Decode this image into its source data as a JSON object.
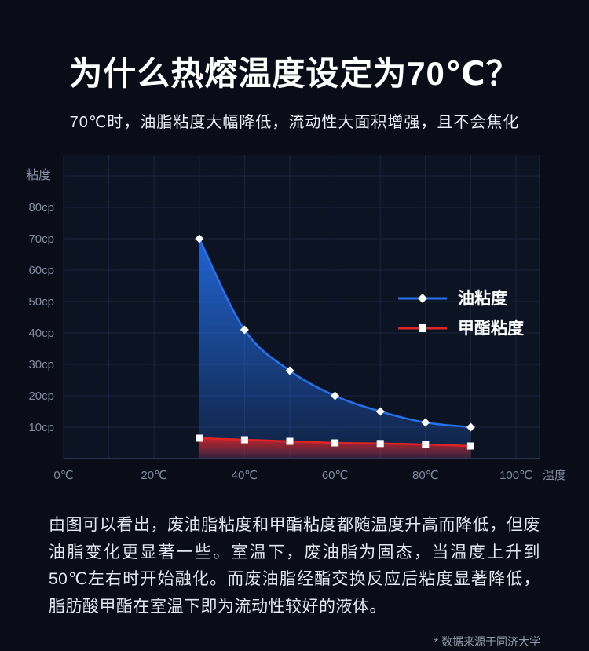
{
  "header": {
    "title": "为什么热熔温度设定为70℃？",
    "subtitle": "70℃时，油脂粘度大幅降低，流动性大面积增强，且不会焦化"
  },
  "chart_data": {
    "type": "line",
    "ylabel": "粘度",
    "xlabel": "温度",
    "x_range": [
      0,
      100
    ],
    "y_range_display": [
      0,
      95
    ],
    "x_tick_values": [
      0,
      20,
      40,
      60,
      80,
      100
    ],
    "x_tick_labels": [
      "0℃",
      "20℃",
      "40℃",
      "60℃",
      "80℃",
      "100℃"
    ],
    "y_tick_values": [
      10,
      20,
      30,
      40,
      50,
      60,
      70,
      80
    ],
    "y_tick_labels": [
      "10cp",
      "20cp",
      "30cp",
      "40cp",
      "50cp",
      "60cp",
      "70cp",
      "80cp"
    ],
    "grid": true,
    "legend_position": "right",
    "series": [
      {
        "id": "oil",
        "name": "油粘度",
        "color": "#2472f0",
        "marker": "diamond",
        "x": [
          30,
          40,
          50,
          60,
          70,
          80,
          90
        ],
        "values": [
          70,
          41,
          28,
          20,
          15,
          11.5,
          10
        ]
      },
      {
        "id": "ester",
        "name": "甲酯粘度",
        "color": "#e02424",
        "marker": "square",
        "x": [
          30,
          40,
          50,
          60,
          70,
          80,
          90
        ],
        "values": [
          6.5,
          6,
          5.5,
          5,
          4.8,
          4.5,
          4
        ]
      }
    ],
    "colors": {
      "background": "#0a0d17",
      "panel": "#0c1322",
      "grid": "#1a2540",
      "axis_text": "#7f8aa2",
      "marker": "#ffffff",
      "legend_text": "#ffffff"
    }
  },
  "main": {
    "paragraph": "由图可以看出，废油脂粘度和甲酯粘度都随温度升高而降低，但废油脂变化更显著一些。室温下，废油脂为固态，当温度上升到50℃左右时开始融化。而废油脂经酯交换反应后粘度显著降低，脂肪酸甲酯在室温下即为流动性较好的液体。"
  },
  "footer": {
    "footnote": "* 数据来源于同济大学"
  }
}
